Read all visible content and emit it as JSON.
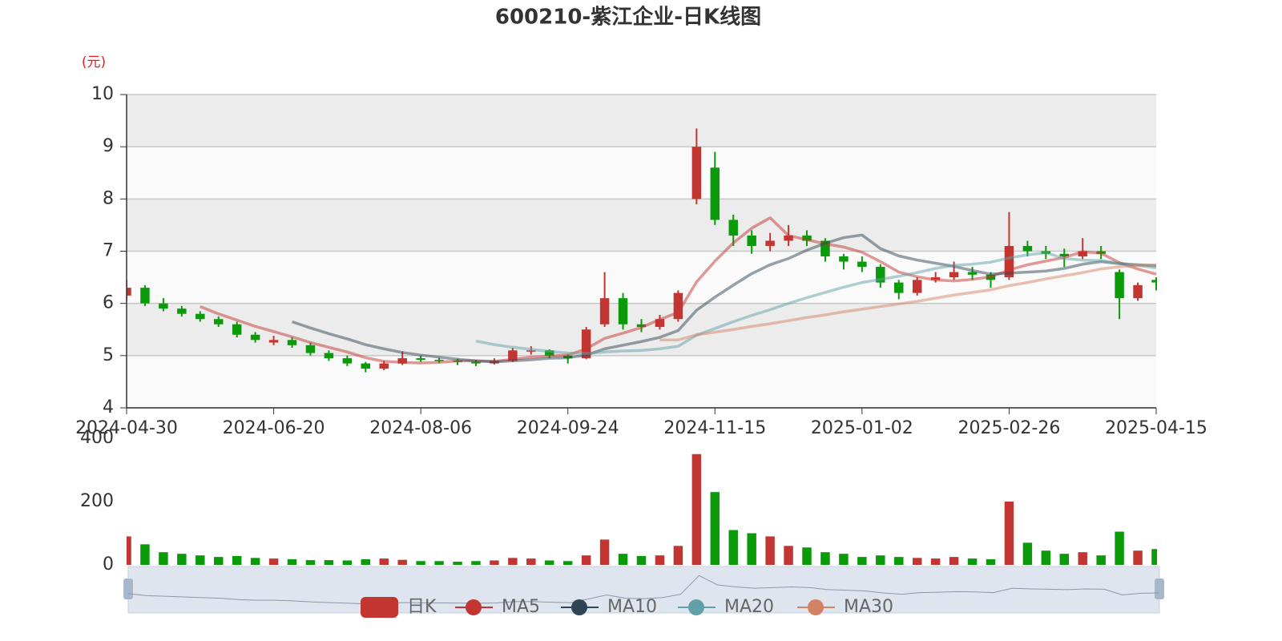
{
  "chart_data": {
    "type": "candlestick",
    "title": "600210-紫江企业-日K线图",
    "y_unit": "(元)",
    "categories": [
      "2024-04-30",
      null,
      null,
      null,
      null,
      null,
      null,
      null,
      "2024-06-20",
      null,
      null,
      null,
      null,
      null,
      null,
      null,
      "2024-08-06",
      null,
      null,
      null,
      null,
      null,
      null,
      null,
      "2024-09-24",
      null,
      null,
      null,
      null,
      null,
      null,
      null,
      "2024-11-15",
      null,
      null,
      null,
      null,
      null,
      null,
      null,
      "2025-01-02",
      null,
      null,
      null,
      null,
      null,
      null,
      null,
      "2025-02-26",
      null,
      null,
      null,
      null,
      null,
      null,
      null,
      "2025-04-15"
    ],
    "ylim": [
      4,
      10
    ],
    "yticks": [
      4,
      5,
      6,
      7,
      8,
      9,
      10
    ],
    "split_area": true,
    "legend_position": "bottom",
    "series": [
      {
        "name": "日K",
        "type": "candlestick",
        "color": "#c23531",
        "down_color": "#0a9a0a",
        "values": [
          [
            6.15,
            6.3,
            6.05,
            6.45
          ],
          [
            6.3,
            6.0,
            5.95,
            6.35
          ],
          [
            6.0,
            5.9,
            5.85,
            6.1
          ],
          [
            5.9,
            5.8,
            5.75,
            5.95
          ],
          [
            5.8,
            5.7,
            5.65,
            5.85
          ],
          [
            5.7,
            5.6,
            5.55,
            5.75
          ],
          [
            5.6,
            5.4,
            5.35,
            5.65
          ],
          [
            5.4,
            5.3,
            5.25,
            5.45
          ],
          [
            5.25,
            5.3,
            5.2,
            5.38
          ],
          [
            5.3,
            5.2,
            5.15,
            5.35
          ],
          [
            5.2,
            5.05,
            5.0,
            5.25
          ],
          [
            5.05,
            4.95,
            4.9,
            5.1
          ],
          [
            4.95,
            4.85,
            4.8,
            5.0
          ],
          [
            4.85,
            4.75,
            4.68,
            4.88
          ],
          [
            4.75,
            4.85,
            4.72,
            4.9
          ],
          [
            4.85,
            4.95,
            4.82,
            5.08
          ],
          [
            4.95,
            4.92,
            4.88,
            5.0
          ],
          [
            4.92,
            4.9,
            4.86,
            4.96
          ],
          [
            4.9,
            4.88,
            4.82,
            4.94
          ],
          [
            4.88,
            4.85,
            4.8,
            4.92
          ],
          [
            4.85,
            4.9,
            4.83,
            4.95
          ],
          [
            4.9,
            5.1,
            4.88,
            5.15
          ],
          [
            5.08,
            5.1,
            5.02,
            5.18
          ],
          [
            5.1,
            5.0,
            4.95,
            5.12
          ],
          [
            5.0,
            4.95,
            4.85,
            5.02
          ],
          [
            4.95,
            5.5,
            4.93,
            5.55
          ],
          [
            5.6,
            6.1,
            5.55,
            6.6
          ],
          [
            6.1,
            5.6,
            5.5,
            6.2
          ],
          [
            5.6,
            5.55,
            5.45,
            5.7
          ],
          [
            5.55,
            5.7,
            5.5,
            5.78
          ],
          [
            5.7,
            6.2,
            5.65,
            6.25
          ],
          [
            8.0,
            9.0,
            7.9,
            9.35
          ],
          [
            8.6,
            7.6,
            7.5,
            8.9
          ],
          [
            7.6,
            7.3,
            7.1,
            7.7
          ],
          [
            7.3,
            7.1,
            6.95,
            7.4
          ],
          [
            7.1,
            7.2,
            7.0,
            7.35
          ],
          [
            7.2,
            7.3,
            7.1,
            7.5
          ],
          [
            7.3,
            7.2,
            7.1,
            7.4
          ],
          [
            7.2,
            6.9,
            6.8,
            7.25
          ],
          [
            6.9,
            6.8,
            6.65,
            6.95
          ],
          [
            6.8,
            6.7,
            6.6,
            6.9
          ],
          [
            6.7,
            6.4,
            6.3,
            6.75
          ],
          [
            6.4,
            6.2,
            6.08,
            6.45
          ],
          [
            6.2,
            6.45,
            6.15,
            6.5
          ],
          [
            6.45,
            6.5,
            6.4,
            6.6
          ],
          [
            6.5,
            6.6,
            6.45,
            6.8
          ],
          [
            6.6,
            6.55,
            6.45,
            6.7
          ],
          [
            6.55,
            6.45,
            6.3,
            6.6
          ],
          [
            6.5,
            7.1,
            6.45,
            7.75
          ],
          [
            7.1,
            7.0,
            6.9,
            7.2
          ],
          [
            7.0,
            6.95,
            6.85,
            7.1
          ],
          [
            6.95,
            6.9,
            6.7,
            7.05
          ],
          [
            6.9,
            7.0,
            6.85,
            7.25
          ],
          [
            7.0,
            6.95,
            6.85,
            7.1
          ],
          [
            6.6,
            6.1,
            5.7,
            6.65
          ],
          [
            6.1,
            6.35,
            6.05,
            6.4
          ],
          [
            6.45,
            6.4,
            6.25,
            6.5
          ]
        ]
      },
      {
        "name": "MA5",
        "type": "line",
        "color": "#c23531",
        "values": [
          null,
          null,
          null,
          null,
          5.94,
          5.8,
          5.68,
          5.56,
          5.46,
          5.36,
          5.25,
          5.16,
          5.07,
          4.96,
          4.89,
          4.87,
          4.86,
          4.87,
          4.9,
          4.9,
          4.89,
          4.93,
          4.97,
          4.99,
          5.01,
          5.13,
          5.33,
          5.43,
          5.54,
          5.69,
          5.83,
          6.41,
          6.81,
          7.16,
          7.44,
          7.64,
          7.3,
          7.22,
          7.14,
          7.08,
          6.98,
          6.8,
          6.6,
          6.51,
          6.45,
          6.43,
          6.46,
          6.51,
          6.64,
          6.74,
          6.81,
          6.88,
          6.99,
          6.96,
          6.78,
          6.66,
          6.56
        ]
      },
      {
        "name": "MA10",
        "type": "line",
        "color": "#2f4554",
        "values": [
          null,
          null,
          null,
          null,
          null,
          null,
          null,
          null,
          null,
          5.65,
          5.53,
          5.42,
          5.32,
          5.21,
          5.13,
          5.06,
          5.01,
          4.97,
          4.93,
          4.9,
          4.88,
          4.9,
          4.92,
          4.95,
          4.96,
          5.01,
          5.13,
          5.2,
          5.27,
          5.35,
          5.48,
          5.87,
          6.12,
          6.35,
          6.57,
          6.74,
          6.86,
          7.02,
          7.15,
          7.26,
          7.31,
          7.05,
          6.91,
          6.83,
          6.77,
          6.71,
          6.63,
          6.56,
          6.58,
          6.6,
          6.62,
          6.67,
          6.75,
          6.8,
          6.76,
          6.74,
          6.72
        ]
      },
      {
        "name": "MA20",
        "type": "line",
        "color": "#61a0a8",
        "values": [
          null,
          null,
          null,
          null,
          null,
          null,
          null,
          null,
          null,
          null,
          null,
          null,
          null,
          null,
          null,
          null,
          null,
          null,
          null,
          5.28,
          5.21,
          5.16,
          5.12,
          5.08,
          5.05,
          5.04,
          5.07,
          5.09,
          5.1,
          5.13,
          5.18,
          5.39,
          5.52,
          5.65,
          5.77,
          5.88,
          6.0,
          6.11,
          6.21,
          6.31,
          6.4,
          6.46,
          6.52,
          6.59,
          6.67,
          6.73,
          6.75,
          6.79,
          6.87,
          6.93,
          6.97,
          6.86,
          6.83,
          6.82,
          6.77,
          6.73,
          6.68
        ]
      },
      {
        "name": "MA30",
        "type": "line",
        "color": "#d48265",
        "values": [
          null,
          null,
          null,
          null,
          null,
          null,
          null,
          null,
          null,
          null,
          null,
          null,
          null,
          null,
          null,
          null,
          null,
          null,
          null,
          null,
          null,
          null,
          null,
          null,
          null,
          null,
          null,
          null,
          null,
          5.3,
          5.3,
          5.4,
          5.45,
          5.5,
          5.56,
          5.61,
          5.67,
          5.73,
          5.78,
          5.84,
          5.89,
          5.94,
          5.99,
          6.04,
          6.1,
          6.16,
          6.21,
          6.26,
          6.34,
          6.4,
          6.47,
          6.53,
          6.59,
          6.66,
          6.7,
          6.73,
          6.74
        ]
      }
    ],
    "volume": {
      "values": [
        90,
        65,
        40,
        35,
        30,
        25,
        28,
        22,
        20,
        18,
        15,
        15,
        14,
        18,
        20,
        16,
        12,
        12,
        10,
        12,
        14,
        22,
        20,
        14,
        12,
        30,
        80,
        35,
        28,
        30,
        60,
        350,
        230,
        110,
        100,
        90,
        60,
        55,
        40,
        35,
        25,
        30,
        25,
        22,
        20,
        25,
        20,
        18,
        200,
        70,
        45,
        35,
        40,
        30,
        105,
        45,
        50
      ],
      "ylim": [
        0,
        400
      ],
      "yticks": [
        0,
        200,
        400
      ]
    }
  }
}
